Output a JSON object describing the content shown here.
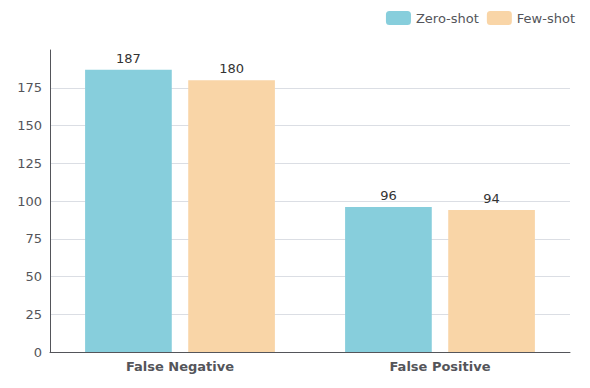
{
  "chart_data": {
    "type": "bar",
    "categories": [
      "False Negative",
      "False Positive"
    ],
    "series": [
      {
        "name": "Zero-shot",
        "color": "#87CEDC",
        "values": [
          187,
          96
        ]
      },
      {
        "name": "Few-shot",
        "color": "#F9D5A7",
        "values": [
          180,
          94
        ]
      }
    ],
    "ylim": [
      0,
      200
    ],
    "yticks": [
      0,
      25,
      50,
      75,
      100,
      125,
      150,
      175
    ],
    "grid": true,
    "legend": "upper right",
    "data_labels": true
  }
}
